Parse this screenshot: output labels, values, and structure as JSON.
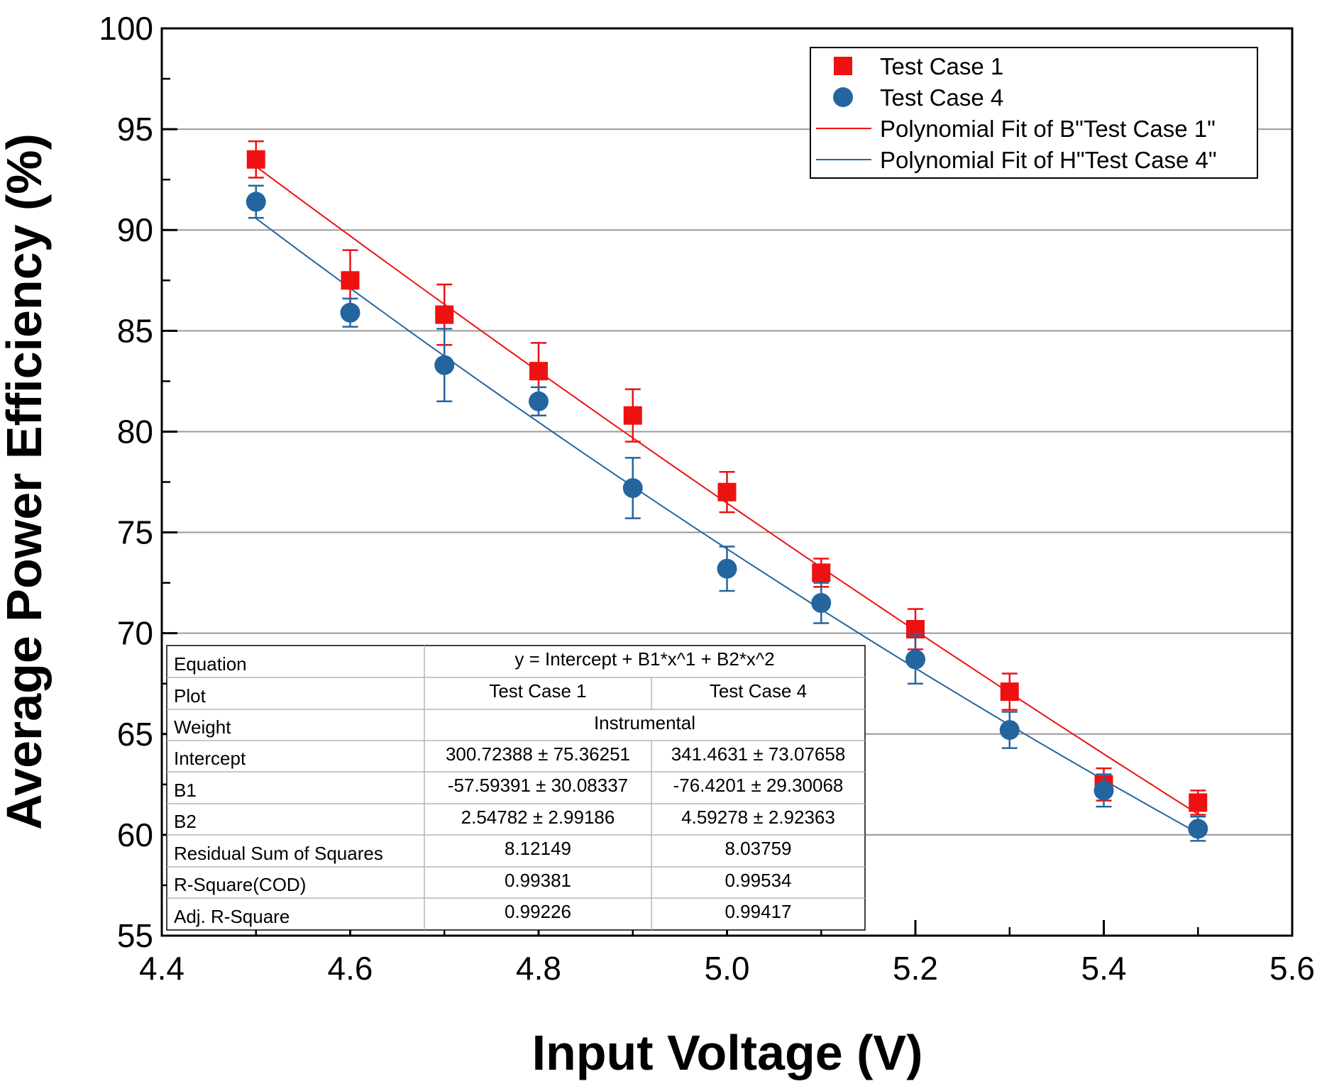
{
  "chart_data": {
    "type": "scatter",
    "xlabel": "Input Voltage (V)",
    "ylabel": "Average Power Efficiency (%)",
    "xlim": [
      4.4,
      5.6
    ],
    "ylim": [
      55,
      100
    ],
    "xticks": [
      "4.4",
      "4.6",
      "4.8",
      "5.0",
      "5.2",
      "5.4",
      "5.6"
    ],
    "yticks": [
      "55",
      "60",
      "65",
      "70",
      "75",
      "80",
      "85",
      "90",
      "95",
      "100"
    ],
    "grid": "horizontal",
    "legend_position": "top-right",
    "series": [
      {
        "name": "Test Case 1",
        "marker": "square",
        "color": "#ee1111",
        "x": [
          4.5,
          4.6,
          4.7,
          4.8,
          4.9,
          5.0,
          5.1,
          5.2,
          5.3,
          5.4,
          5.5
        ],
        "y": [
          93.5,
          87.5,
          85.8,
          83.0,
          80.8,
          77.0,
          73.0,
          70.2,
          67.1,
          62.5,
          61.6
        ],
        "err": [
          0.9,
          1.5,
          1.5,
          1.4,
          1.3,
          1.0,
          0.7,
          1.0,
          0.9,
          0.8,
          0.6
        ]
      },
      {
        "name": "Test Case 4",
        "marker": "circle",
        "color": "#2465a0",
        "x": [
          4.5,
          4.6,
          4.7,
          4.8,
          4.9,
          5.0,
          5.1,
          5.2,
          5.3,
          5.4,
          5.5
        ],
        "y": [
          91.4,
          85.9,
          83.3,
          81.5,
          77.2,
          73.2,
          71.5,
          68.7,
          65.2,
          62.2,
          60.3
        ],
        "err": [
          0.8,
          0.7,
          1.8,
          0.7,
          1.5,
          1.1,
          1.0,
          1.2,
          0.9,
          0.8,
          0.6
        ]
      }
    ],
    "fits": [
      {
        "name": "Polynomial Fit of B\"Test Case 1\"",
        "color": "#ee1111",
        "coefficients": [
          300.72388,
          -57.59391,
          2.54782
        ],
        "x_range": [
          4.5,
          5.5
        ]
      },
      {
        "name": "Polynomial Fit of H\"Test Case 4\"",
        "color": "#2465a0",
        "coefficients": [
          341.4631,
          -76.4201,
          4.59278
        ],
        "x_range": [
          4.5,
          5.5
        ]
      }
    ],
    "fit_table": {
      "rows": [
        [
          "Equation",
          "y = Intercept + B1*x^1 + B2*x^2"
        ],
        [
          "Plot",
          "Test Case 1",
          "Test Case 4"
        ],
        [
          "Weight",
          "Instrumental"
        ],
        [
          "Intercept",
          "300.72388 ± 75.36251",
          "341.4631 ± 73.07658"
        ],
        [
          "B1",
          "-57.59391 ± 30.08337",
          "-76.4201 ± 29.30068"
        ],
        [
          "B2",
          "2.54782 ± 2.99186",
          "4.59278 ± 2.92363"
        ],
        [
          "Residual Sum of Squares",
          "8.12149",
          "8.03759"
        ],
        [
          "R-Square(COD)",
          "0.99381",
          "0.99534"
        ],
        [
          "Adj. R-Square",
          "0.99226",
          "0.99417"
        ]
      ]
    }
  }
}
